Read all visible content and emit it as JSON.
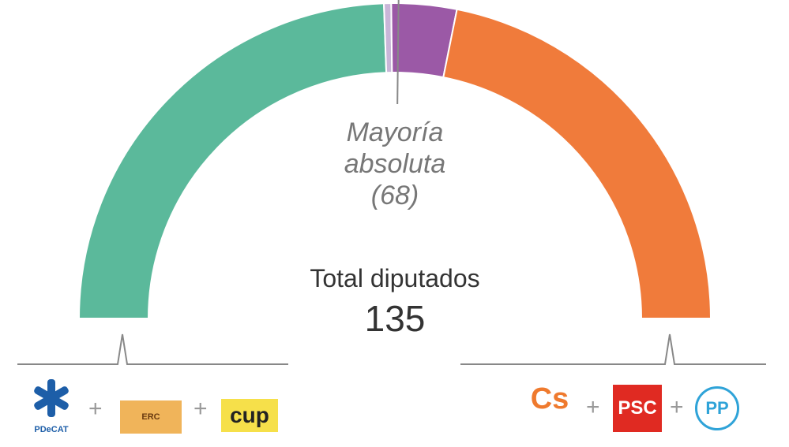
{
  "chart_data": {
    "type": "pie",
    "subtype": "semicircle-parliament",
    "total": 135,
    "segments": [
      {
        "value": 66,
        "color": "#5bb99b"
      },
      {
        "value": 1,
        "color": "#c9b6d8"
      },
      {
        "value": 9,
        "color": "#9b59a6"
      },
      {
        "value": 59,
        "color": "#f07b3b"
      }
    ],
    "majority": {
      "label_line1": "Mayoría",
      "label_line2": "absoluta",
      "label_line3": "(68)",
      "value": 68
    },
    "total_label": "Total diputados",
    "total_value": "135"
  },
  "blocs": {
    "left": {
      "logos": [
        "PDeCAT",
        "ERC",
        "CUP"
      ],
      "plus": "+"
    },
    "right": {
      "logos": [
        "Cs",
        "PSC",
        "PP"
      ],
      "plus": "+"
    }
  }
}
